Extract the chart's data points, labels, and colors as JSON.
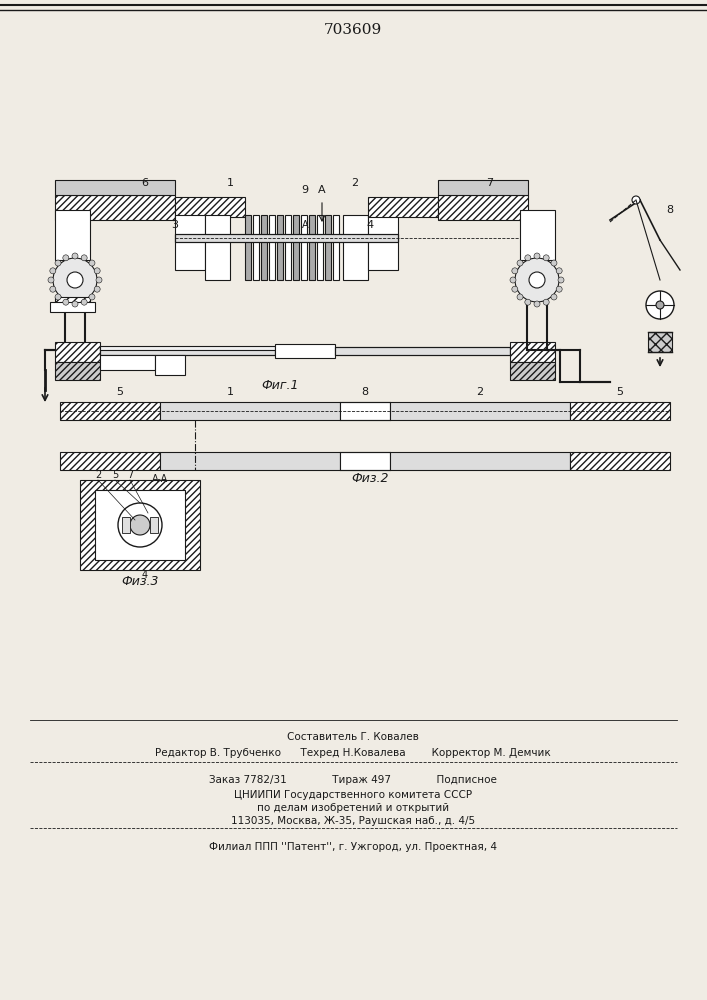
{
  "title": "703609",
  "bg_color": "#f0ece4",
  "fig_label1": "Фиг.1",
  "fig_label2": "Физ.2",
  "fig_label3": "Физ.3",
  "footer_lines": [
    "Составитель Г. Ковалев",
    "Редактор В. Трубченко      Техред Н.Ковалева      Корректор М. Демчик",
    "Заказ 7782/31          Тираж 497          Подписное",
    "ЦНИИПИ Государственного комитета СССР",
    "по делам изобретений и открытий",
    "113035, Москва, Ж-35, Раушская наб., д. 4/5",
    "Филиал ППП ''Патент'', г. Ужгород, ул. Проектная, 4"
  ]
}
